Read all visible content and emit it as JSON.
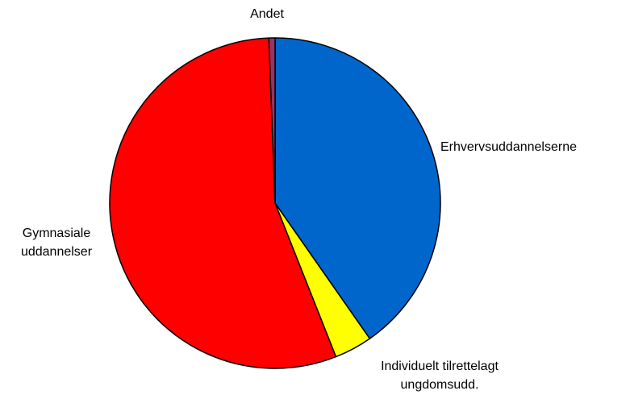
{
  "chart_data": {
    "type": "pie",
    "categories": [
      "Erhvervsuddannelserne",
      "Individuelt tilrettelagt ungdomsudd.",
      "Gymnasiale uddannelser",
      "Andet"
    ],
    "values": [
      40.3,
      3.7,
      55.4,
      0.6
    ],
    "colors": [
      "#0066cc",
      "#ffff00",
      "#ff0000",
      "#993366"
    ]
  }
}
